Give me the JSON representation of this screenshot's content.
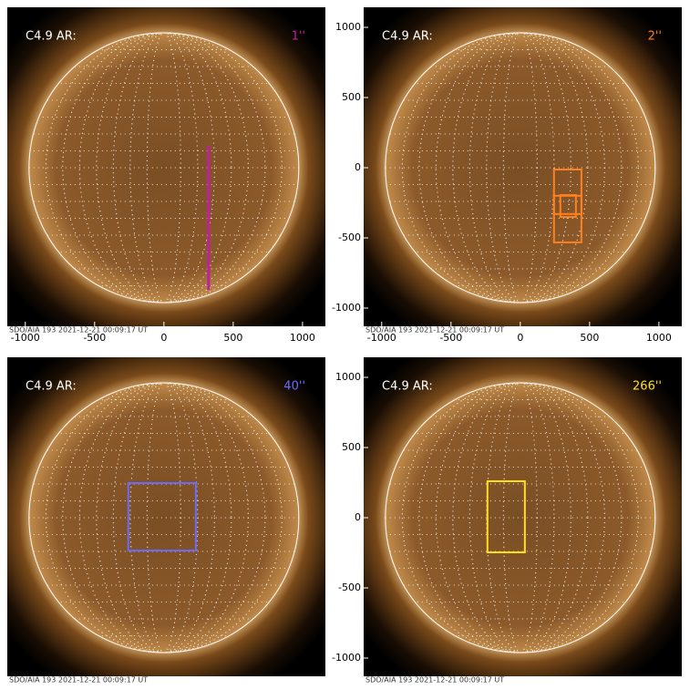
{
  "chart_data": [
    {
      "type": "image",
      "label": "C4.9 AR:",
      "annotation": "1''",
      "color": "#c020a0",
      "caption": "SDO/AIA 193 2021-12-21 00:09:17 UT",
      "xlim": [
        -1130,
        1165
      ],
      "ylim": [
        -1130,
        1143
      ],
      "xticks": [
        -1000,
        -500,
        0,
        500,
        1000
      ],
      "regions": [
        {
          "shape": "line",
          "x": [
            322,
            322
          ],
          "y": [
            156,
            -870
          ]
        }
      ]
    },
    {
      "type": "image",
      "label": "C4.9 AR:",
      "annotation": "2''",
      "color": "#ff8020",
      "caption": "SDO/AIA 193 2021-12-21 00:09:17 UT",
      "xlim": [
        -1130,
        1165
      ],
      "ylim": [
        -1130,
        1143
      ],
      "xticks": [
        -1000,
        -500,
        0,
        500,
        1000
      ],
      "yticks": [
        -1000,
        -500,
        0,
        500,
        1000
      ],
      "regions": [
        {
          "shape": "rect",
          "x": [
            243,
            441
          ],
          "y": [
            -13,
            -330
          ]
        },
        {
          "shape": "rect",
          "x": [
            243,
            441
          ],
          "y": [
            -200,
            -532
          ]
        },
        {
          "shape": "rect",
          "x": [
            289,
            401
          ],
          "y": [
            -195,
            -351
          ]
        }
      ]
    },
    {
      "type": "image",
      "label": "C4.9 AR:",
      "annotation": "40''",
      "color": "#6a6aff",
      "caption": "SDO/AIA 193 2021-12-21 00:09:17 UT",
      "xlim": [
        -1130,
        1165
      ],
      "ylim": [
        -1130,
        1143
      ],
      "regions": [
        {
          "shape": "rect",
          "x": [
            -257,
            230
          ],
          "y": [
            247,
            -234
          ]
        }
      ]
    },
    {
      "type": "image",
      "label": "C4.9 AR:",
      "annotation": "266''",
      "color": "#ffe020",
      "caption": "SDO/AIA 193 2021-12-21 00:09:17 UT",
      "xlim": [
        -1130,
        1165
      ],
      "ylim": [
        -1130,
        1143
      ],
      "yticks": [
        -1000,
        -500,
        0,
        500,
        1000
      ],
      "regions": [
        {
          "shape": "rect",
          "x": [
            -237,
            33
          ],
          "y": [
            260,
            -247
          ]
        }
      ]
    }
  ]
}
